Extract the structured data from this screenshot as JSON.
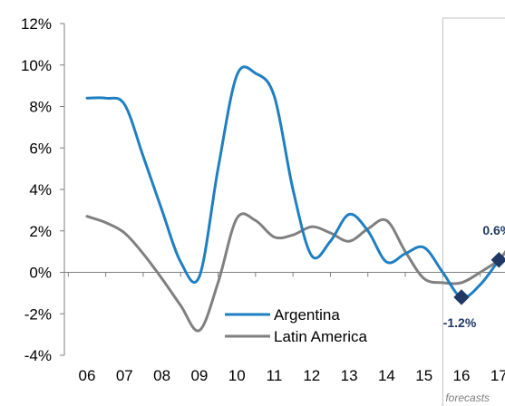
{
  "chart_data": {
    "type": "line",
    "title": "",
    "xlabel": "",
    "ylabel": "",
    "categories": [
      "06",
      "07",
      "08",
      "09",
      "10",
      "11",
      "12",
      "13",
      "14",
      "15",
      "16",
      "17"
    ],
    "y_ticks": [
      "12%",
      "10%",
      "8%",
      "6%",
      "4%",
      "2%",
      "0%",
      "-2%",
      "-4%"
    ],
    "ylim": [
      -4,
      12
    ],
    "grid": false,
    "legend_position": "bottom-center",
    "series": [
      {
        "name": "Argentina",
        "color": "#1f7fc1",
        "x": [
          2006.0,
          2006.5,
          2007.0,
          2007.5,
          2008.0,
          2008.5,
          2009.0,
          2009.5,
          2010.0,
          2010.5,
          2011.0,
          2011.5,
          2012.0,
          2012.5,
          2013.0,
          2013.5,
          2014.0,
          2014.5,
          2015.0,
          2015.5,
          2016.0,
          2016.5,
          2017.0
        ],
        "values": [
          8.4,
          8.4,
          8.1,
          5.6,
          3.0,
          0.5,
          -0.2,
          5.0,
          9.5,
          9.6,
          8.5,
          4.0,
          0.8,
          1.5,
          2.8,
          2.0,
          0.5,
          0.9,
          1.2,
          0.0,
          -1.2,
          -0.6,
          0.6
        ]
      },
      {
        "name": "Latin America",
        "color": "#808080",
        "x": [
          2006.0,
          2006.5,
          2007.0,
          2007.5,
          2008.0,
          2008.5,
          2009.0,
          2009.5,
          2010.0,
          2010.5,
          2011.0,
          2011.5,
          2012.0,
          2012.5,
          2013.0,
          2013.5,
          2014.0,
          2014.5,
          2015.0,
          2015.5,
          2016.0,
          2016.5,
          2017.0,
          2017.25
        ],
        "values": [
          2.7,
          2.4,
          1.9,
          0.9,
          -0.3,
          -1.6,
          -2.8,
          -0.5,
          2.6,
          2.5,
          1.7,
          1.8,
          2.2,
          1.9,
          1.5,
          2.1,
          2.5,
          1.0,
          -0.3,
          -0.5,
          -0.5,
          0.0,
          0.6,
          1.2
        ]
      }
    ],
    "markers": [
      {
        "x": 2016.0,
        "value": -1.2,
        "label": "-1.2%"
      },
      {
        "x": 2017.0,
        "value": 0.6,
        "label": "0.6%"
      }
    ],
    "forecast_label": "forecasts",
    "forecast_start_x": 2015.5
  }
}
